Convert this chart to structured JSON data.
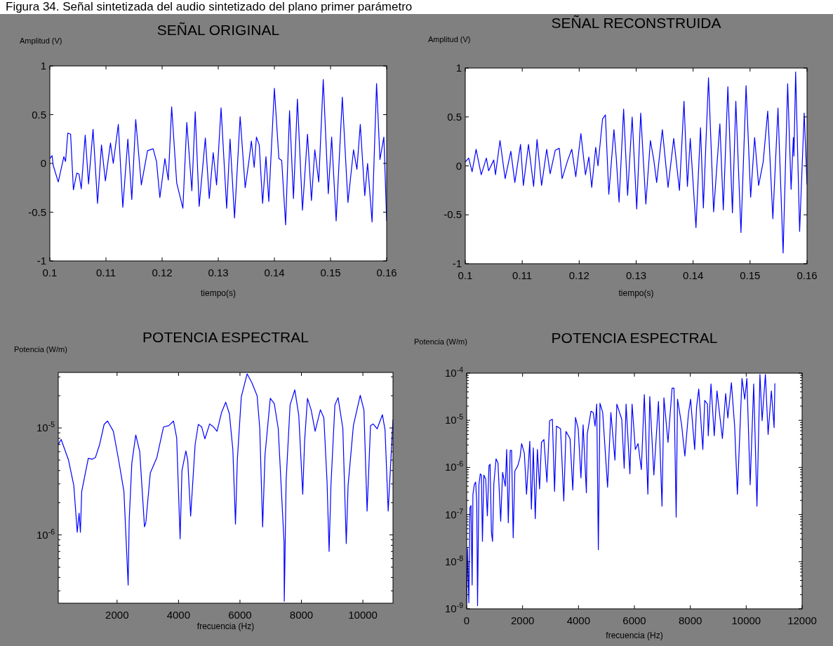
{
  "chart_data": [
    {
      "type": "line",
      "title": "SEÑAL ORIGINAL",
      "xlabel": "tiempo(s)",
      "ylabel": "Amplitud (V)",
      "annotations": [
        "Figura 34. Señal sintetizada del audio sintetizado del plano primer parámetro"
      ],
      "xlim": [
        0.1,
        0.16
      ],
      "ylim": [
        -1,
        1
      ],
      "xticks": [
        0.1,
        0.11,
        0.12,
        0.13,
        0.14,
        0.15,
        0.16
      ],
      "yticks": [
        -1,
        -0.5,
        0,
        0.5,
        1
      ],
      "x": [
        0.1,
        0.1004,
        0.1006,
        0.1015,
        0.1025,
        0.1028,
        0.1032,
        0.1037,
        0.1042,
        0.1048,
        0.1052,
        0.1056,
        0.1063,
        0.1069,
        0.1077,
        0.1085,
        0.1092,
        0.1099,
        0.1108,
        0.1113,
        0.1122,
        0.113,
        0.1139,
        0.1146,
        0.1153,
        0.1163,
        0.1174,
        0.1184,
        0.119,
        0.1196,
        0.1205,
        0.1211,
        0.1217,
        0.1226,
        0.1237,
        0.1244,
        0.1253,
        0.1259,
        0.1266,
        0.1277,
        0.1284,
        0.1291,
        0.1297,
        0.1305,
        0.1315,
        0.1321,
        0.1329,
        0.1339,
        0.1348,
        0.1355,
        0.1359,
        0.1364,
        0.1368,
        0.1373,
        0.1379,
        0.1385,
        0.139,
        0.14,
        0.1408,
        0.1413,
        0.142,
        0.1427,
        0.1434,
        0.1441,
        0.145,
        0.1459,
        0.1466,
        0.1472,
        0.1479,
        0.1487,
        0.1496,
        0.1502,
        0.151,
        0.1521,
        0.1531,
        0.1541,
        0.1547,
        0.1553,
        0.1561,
        0.1566,
        0.1574,
        0.1582,
        0.1588,
        0.1595,
        0.16
      ],
      "series": [
        {
          "color": "#0000ff",
          "values": [
            0.05,
            0.08,
            -0.02,
            -0.19,
            0.07,
            0.02,
            0.31,
            0.3,
            -0.27,
            -0.1,
            -0.11,
            -0.26,
            0.29,
            -0.21,
            0.35,
            -0.41,
            0.19,
            -0.18,
            0.21,
            0,
            0.4,
            -0.45,
            0.25,
            -0.37,
            0.45,
            -0.22,
            0.13,
            0.15,
            0.02,
            -0.35,
            0.05,
            -0.17,
            0.58,
            -0.2,
            -0.46,
            0.42,
            -0.28,
            0.53,
            -0.44,
            0.26,
            -0.36,
            0.11,
            -0.22,
            0.57,
            -0.46,
            0.25,
            -0.56,
            0.48,
            -0.25,
            0.04,
            0.23,
            -0.04,
            0.27,
            0.19,
            -0.41,
            0.07,
            -0.39,
            0.77,
            0.05,
            0.03,
            -0.63,
            0.54,
            -0.36,
            0.66,
            -0.48,
            0.3,
            -0.38,
            0.14,
            -0.19,
            0.86,
            -0.31,
            0.27,
            -0.59,
            0.68,
            -0.4,
            0.14,
            -0.06,
            0.4,
            -0.33,
            0,
            -0.6,
            0.82,
            0.04,
            0.27,
            -0.59
          ]
        }
      ]
    },
    {
      "type": "line",
      "title": "SEÑAL RECONSTRUIDA",
      "xlabel": "tiempo(s)",
      "ylabel": "Amplitud (V)",
      "xlim": [
        0.1,
        0.16
      ],
      "ylim": [
        -1,
        1
      ],
      "xticks": [
        0.1,
        0.11,
        0.12,
        0.13,
        0.14,
        0.15,
        0.16
      ],
      "yticks": [
        -1,
        -0.5,
        0,
        0.5,
        1
      ],
      "x": [
        0.1,
        0.1006,
        0.1012,
        0.1019,
        0.1028,
        0.1037,
        0.1041,
        0.105,
        0.1053,
        0.1061,
        0.107,
        0.108,
        0.1087,
        0.1097,
        0.1102,
        0.1111,
        0.112,
        0.1126,
        0.1134,
        0.1143,
        0.1149,
        0.1158,
        0.1165,
        0.117,
        0.118,
        0.1187,
        0.1194,
        0.1203,
        0.1211,
        0.1217,
        0.1222,
        0.1229,
        0.1233,
        0.1241,
        0.1246,
        0.1252,
        0.1261,
        0.1265,
        0.127,
        0.1278,
        0.1285,
        0.1293,
        0.1301,
        0.1308,
        0.1317,
        0.1325,
        0.1331,
        0.1336,
        0.1346,
        0.1356,
        0.1366,
        0.1376,
        0.1384,
        0.139,
        0.1395,
        0.1405,
        0.1413,
        0.1418,
        0.1427,
        0.1436,
        0.1447,
        0.1453,
        0.1461,
        0.1469,
        0.1475,
        0.1484,
        0.1493,
        0.1501,
        0.1508,
        0.1515,
        0.1523,
        0.1531,
        0.154,
        0.1549,
        0.1558,
        0.1566,
        0.1572,
        0.1576,
        0.1577,
        0.158,
        0.1587,
        0.1595,
        0.16
      ],
      "series": [
        {
          "color": "#0000ff",
          "values": [
            0.04,
            0.08,
            -0.06,
            0.17,
            -0.09,
            0.08,
            -0.05,
            0.06,
            -0.09,
            0.26,
            -0.13,
            0.15,
            -0.17,
            0.22,
            -0.2,
            0.22,
            -0.21,
            0.27,
            -0.2,
            0.17,
            -0.08,
            0.16,
            0.18,
            -0.13,
            0.06,
            0.17,
            -0.11,
            0.33,
            -0.09,
            0.09,
            -0.22,
            0.19,
            0,
            0.48,
            0.52,
            -0.29,
            0.37,
            0.09,
            -0.37,
            0.58,
            -0.3,
            0.5,
            -0.44,
            0.54,
            -0.39,
            0.26,
            0.06,
            -0.17,
            0.37,
            -0.22,
            0.28,
            -0.25,
            0.66,
            -0.21,
            0.28,
            -0.63,
            0.39,
            -0.43,
            0.9,
            -0.47,
            0.43,
            -0.45,
            0.81,
            -0.48,
            0.66,
            -0.68,
            0.82,
            -0.32,
            0.29,
            -0.2,
            0.04,
            0.56,
            -0.54,
            0.59,
            -0.89,
            0.84,
            -0.24,
            0.29,
            0.1,
            0.96,
            -0.67,
            0.54,
            -0.19
          ]
        }
      ]
    },
    {
      "type": "line",
      "title": "POTENCIA ESPECTRAL",
      "xlabel": "frecuencia (Hz)",
      "ylabel": "Potencia (W/m)",
      "log": true,
      "xlim": [
        86,
        10980
      ],
      "ylim": [
        2.3e-07,
        3.3e-05
      ],
      "xticks": [
        2000,
        4000,
        6000,
        8000,
        10000
      ],
      "yticks": [
        {
          "value": 3e-07,
          "label": null
        },
        {
          "value": 4e-07,
          "label": null
        },
        {
          "value": 5e-07,
          "label": null
        },
        {
          "value": 6e-07,
          "label": null
        },
        {
          "value": 7e-07,
          "label": null
        },
        {
          "value": 8e-07,
          "label": null
        },
        {
          "value": 9e-07,
          "label": null
        },
        {
          "value": 1e-06,
          "label": "10$^{-6}$"
        },
        {
          "value": 2e-06,
          "label": null
        },
        {
          "value": 3e-06,
          "label": null
        },
        {
          "value": 4e-06,
          "label": null
        },
        {
          "value": 5e-06,
          "label": null
        },
        {
          "value": 6e-06,
          "label": null
        },
        {
          "value": 7e-06,
          "label": null
        },
        {
          "value": 8e-06,
          "label": null
        },
        {
          "value": 9e-06,
          "label": null
        },
        {
          "value": 1e-05,
          "label": "10$^{-5}$"
        },
        {
          "value": 2e-05,
          "label": null
        },
        {
          "value": 3e-05,
          "label": null
        }
      ],
      "x": [
        86,
        180,
        421,
        592,
        704,
        764,
        807,
        850,
        1064,
        1193,
        1296,
        1433,
        1579,
        1691,
        1880,
        2052,
        2223,
        2335,
        2361,
        2395,
        2481,
        2609,
        2738,
        2893,
        2936,
        3082,
        3296,
        3511,
        3682,
        3837,
        3940,
        4052,
        4112,
        4240,
        4300,
        4395,
        4541,
        4644,
        4755,
        4858,
        5013,
        5142,
        5253,
        5399,
        5536,
        5657,
        5768,
        5854,
        5914,
        6043,
        6232,
        6386,
        6558,
        6644,
        6738,
        6815,
        6987,
        7116,
        7245,
        7433,
        7442,
        7459,
        7502,
        7631,
        7785,
        7914,
        8043,
        8103,
        8197,
        8318,
        8446,
        8618,
        8730,
        8833,
        8901,
        8961,
        9090,
        9193,
        9348,
        9459,
        9519,
        9691,
        9914,
        10034,
        10137,
        10249,
        10335,
        10464,
        10635,
        10721,
        10824,
        10893,
        10980
      ],
      "series": [
        {
          "color": "#0000ff",
          "values": [
            7e-06,
            7.8e-06,
            5e-06,
            2.9e-06,
            1.06e-06,
            1.6e-06,
            1.06e-06,
            2.55e-06,
            5.2e-06,
            5.1e-06,
            5.3e-06,
            7e-06,
            1.08e-05,
            1.16e-05,
            9.3e-06,
            5e-06,
            2.55e-06,
            5e-07,
            3.4e-07,
            1.37e-06,
            4.7e-06,
            8.6e-06,
            6e-06,
            1.19e-06,
            1.3e-06,
            3.8e-06,
            5.3e-06,
            1.02e-05,
            1.05e-05,
            1.16e-05,
            8.1e-06,
            9.2e-07,
            4e-06,
            6.1e-06,
            5e-06,
            1.5e-06,
            7e-06,
            1.08e-05,
            1.02e-05,
            7.9e-06,
            1.09e-05,
            1.02e-05,
            9.3e-06,
            1.39e-05,
            1.74e-05,
            1.35e-05,
            6.3e-06,
            1.26e-06,
            5e-06,
            1.95e-05,
            3.2e-05,
            2.65e-05,
            2e-05,
            9.9e-06,
            1.19e-06,
            5.6e-06,
            1.89e-05,
            1.69e-05,
            9.9e-06,
            8.7e-07,
            2.4e-07,
            4.7e-07,
            3.2e-06,
            1.64e-05,
            2.27e-05,
            1.31e-05,
            2.4e-06,
            7.5e-06,
            1.89e-05,
            1.47e-05,
            9.3e-06,
            1.48e-05,
            1.24e-05,
            3.2e-06,
            7e-07,
            2.9e-06,
            1.64e-05,
            1.92e-05,
            9.9e-06,
            8.3e-07,
            2.9e-06,
            1.05e-05,
            2.02e-05,
            1.47e-05,
            1.67e-06,
            1.05e-05,
            1.09e-05,
            9.8e-06,
            1.33e-05,
            9.6e-06,
            1.67e-06,
            4e-06,
            1.2e-05
          ]
        }
      ]
    },
    {
      "type": "line",
      "title": "POTENCIA ESPECTRAL",
      "xlabel": "frecuencia (Hz)",
      "ylabel": "Potencia (W/m)",
      "log": true,
      "xlim": [
        0,
        12000
      ],
      "ylim": [
        1e-09,
        0.0001
      ],
      "xticks": [
        0,
        2000,
        4000,
        6000,
        8000,
        10000,
        12000
      ],
      "yticks": [
        {
          "value": 1e-09,
          "label": "10$^{-9}$"
        },
        {
          "value": 2e-09,
          "label": null
        },
        {
          "value": 3e-09,
          "label": null
        },
        {
          "value": 4e-09,
          "label": null
        },
        {
          "value": 5e-09,
          "label": null
        },
        {
          "value": 6e-09,
          "label": null
        },
        {
          "value": 7e-09,
          "label": null
        },
        {
          "value": 8e-09,
          "label": null
        },
        {
          "value": 9e-09,
          "label": null
        },
        {
          "value": 1e-08,
          "label": "10$^{-8}$"
        },
        {
          "value": 2e-08,
          "label": null
        },
        {
          "value": 3e-08,
          "label": null
        },
        {
          "value": 4e-08,
          "label": null
        },
        {
          "value": 5e-08,
          "label": null
        },
        {
          "value": 6e-08,
          "label": null
        },
        {
          "value": 7e-08,
          "label": null
        },
        {
          "value": 8e-08,
          "label": null
        },
        {
          "value": 9e-08,
          "label": null
        },
        {
          "value": 1e-07,
          "label": "10$^{-7}$"
        },
        {
          "value": 2e-07,
          "label": null
        },
        {
          "value": 3e-07,
          "label": null
        },
        {
          "value": 4e-07,
          "label": null
        },
        {
          "value": 5e-07,
          "label": null
        },
        {
          "value": 6e-07,
          "label": null
        },
        {
          "value": 7e-07,
          "label": null
        },
        {
          "value": 8e-07,
          "label": null
        },
        {
          "value": 9e-07,
          "label": null
        },
        {
          "value": 1e-06,
          "label": "10$^{-6}$"
        },
        {
          "value": 2e-06,
          "label": null
        },
        {
          "value": 3e-06,
          "label": null
        },
        {
          "value": 4e-06,
          "label": null
        },
        {
          "value": 5e-06,
          "label": null
        },
        {
          "value": 6e-06,
          "label": null
        },
        {
          "value": 7e-06,
          "label": null
        },
        {
          "value": 8e-06,
          "label": null
        },
        {
          "value": 9e-06,
          "label": null
        },
        {
          "value": 1e-05,
          "label": "10$^{-5}$"
        },
        {
          "value": 2e-05,
          "label": null
        },
        {
          "value": 3e-05,
          "label": null
        },
        {
          "value": 4e-05,
          "label": null
        },
        {
          "value": 5e-05,
          "label": null
        },
        {
          "value": 6e-05,
          "label": null
        },
        {
          "value": 7e-05,
          "label": null
        },
        {
          "value": 8e-05,
          "label": null
        },
        {
          "value": 9e-05,
          "label": null
        },
        {
          "value": 0.0001,
          "label": "10$^{-4}$"
        }
      ],
      "x": [
        0,
        29,
        78,
        117,
        156,
        195,
        224,
        273,
        321,
        360,
        389,
        438,
        487,
        526,
        564,
        613,
        681,
        740,
        798,
        837,
        886,
        925,
        973,
        1051,
        1119,
        1217,
        1285,
        1382,
        1431,
        1489,
        1557,
        1606,
        1664,
        1723,
        1830,
        1908,
        1966,
        2063,
        2141,
        2258,
        2316,
        2384,
        2453,
        2530,
        2608,
        2676,
        2764,
        2871,
        2968,
        3066,
        3144,
        3212,
        3358,
        3474,
        3552,
        3698,
        3796,
        3893,
        3990,
        4088,
        4165,
        4282,
        4311,
        4448,
        4526,
        4594,
        4652,
        4710,
        4769,
        4866,
        5041,
        5158,
        5304,
        5372,
        5547,
        5635,
        5703,
        5839,
        5917,
        6034,
        6131,
        6248,
        6355,
        6482,
        6550,
        6696,
        6861,
        6988,
        7056,
        7202,
        7348,
        7416,
        7494,
        7543,
        7689,
        7805,
        7932,
        8010,
        8156,
        8224,
        8302,
        8448,
        8516,
        8613,
        8642,
        8740,
        8856,
        8954,
        9148,
        9265,
        9343,
        9470,
        9586,
        9684,
        9849,
        9947,
        10024,
        10141,
        10268,
        10384,
        10491,
        10569,
        10686,
        10783,
        10900,
        10998,
        11025
      ],
      "series": [
        {
          "color": "#0000ff",
          "values": [
            1.25e-09,
            1.9e-08,
            1.34e-09,
            1.4e-07,
            1.55e-07,
            3.2e-09,
            2.7e-07,
            4.3e-07,
            4.9e-07,
            1.8e-07,
            1.17e-09,
            4.3e-07,
            7.3e-07,
            6.9e-07,
            2.7e-08,
            6.9e-07,
            5.6e-07,
            9.4e-08,
            1.09e-06,
            1.17e-06,
            4.2e-08,
            2.7e-08,
            4.6e-07,
            1.52e-06,
            1.25e-06,
            7.2e-08,
            7.9e-07,
            4e-07,
            2.4e-06,
            6.7e-08,
            2.3e-06,
            2.3e-06,
            3.2e-08,
            8.4e-07,
            1.09e-06,
            1.63e-06,
            3.2e-06,
            2e-06,
            2.7e-07,
            3.6e-06,
            1.3e-07,
            2.6e-06,
            8.2e-08,
            2.4e-06,
            3.5e-07,
            3.4e-06,
            3.9e-06,
            4.9e-07,
            9.8e-06,
            1.05e-05,
            3.1e-07,
            7.5e-06,
            6.6e-06,
            1.95e-07,
            5.8e-06,
            4.1e-06,
            3.3e-07,
            1.15e-05,
            6.6e-06,
            6e-07,
            8e-06,
            2.9e-07,
            5e-06,
            1.56e-05,
            1.46e-05,
            7.5e-06,
            2.2e-05,
            1.8e-08,
            2.3e-05,
            1.46e-05,
            3.8e-07,
            1.46e-05,
            1.43e-06,
            2.2e-05,
            1.05e-05,
            9.6e-07,
            2.2e-05,
            7.3e-07,
            2.2e-05,
            2.4e-06,
            3.2e-06,
            9e-07,
            3.5e-05,
            2.7e-07,
            3.2e-05,
            6.9e-07,
            2.5e-05,
            1.5e-07,
            3e-05,
            3.4e-06,
            4.8e-05,
            4.8e-05,
            8.8e-08,
            2.8e-05,
            8e-06,
            1.74e-06,
            1.36e-05,
            2.8e-05,
            2.4e-06,
            1.9e-05,
            4.6e-05,
            2.4e-06,
            2.65e-05,
            2.2e-05,
            4.7e-06,
            5.9e-05,
            4.7e-06,
            4.2e-05,
            4.1e-06,
            3.7e-05,
            1.12e-05,
            6.3e-05,
            7.5e-06,
            2.7e-07,
            7.7e-05,
            2.8e-05,
            7.7e-05,
            4.3e-07,
            5.9e-05,
            1.5e-07,
            9.4e-05,
            9.8e-06,
            9.4e-05,
            5e-06,
            4.2e-05,
            7e-06,
            6.1e-05
          ]
        }
      ]
    }
  ]
}
